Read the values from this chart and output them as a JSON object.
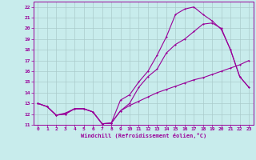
{
  "xlabel": "Windchill (Refroidissement éolien,°C)",
  "bg_color": "#c8ecec",
  "line_color": "#990099",
  "grid_color": "#aacccc",
  "xlim": [
    -0.5,
    23.5
  ],
  "ylim": [
    11,
    22.5
  ],
  "xticks": [
    0,
    1,
    2,
    3,
    4,
    5,
    6,
    7,
    8,
    9,
    10,
    11,
    12,
    13,
    14,
    15,
    16,
    17,
    18,
    19,
    20,
    21,
    22,
    23
  ],
  "yticks": [
    11,
    12,
    13,
    14,
    15,
    16,
    17,
    18,
    19,
    20,
    21,
    22
  ],
  "line1_x": [
    0,
    1,
    2,
    3,
    4,
    5,
    6,
    7,
    8,
    9,
    10,
    11,
    12,
    13,
    14,
    15,
    16,
    17,
    18,
    19,
    20,
    21,
    22,
    23
  ],
  "line1_y": [
    13.0,
    12.7,
    11.9,
    12.0,
    12.5,
    12.5,
    12.2,
    11.1,
    11.15,
    12.3,
    12.8,
    13.2,
    13.6,
    14.0,
    14.3,
    14.6,
    14.9,
    15.2,
    15.4,
    15.7,
    16.0,
    16.3,
    16.6,
    17.0
  ],
  "line2_x": [
    0,
    1,
    2,
    3,
    4,
    5,
    6,
    7,
    8,
    9,
    10,
    11,
    12,
    13,
    14,
    15,
    16,
    17,
    18,
    19,
    20,
    21,
    22,
    23
  ],
  "line2_y": [
    13.0,
    12.7,
    11.9,
    12.0,
    12.5,
    12.5,
    12.2,
    11.1,
    11.15,
    12.3,
    13.0,
    14.5,
    15.5,
    16.2,
    17.7,
    18.5,
    19.0,
    19.7,
    20.4,
    20.5,
    20.0,
    18.0,
    15.5,
    14.5
  ],
  "line3_x": [
    0,
    1,
    2,
    3,
    4,
    5,
    6,
    7,
    8,
    9,
    10,
    11,
    12,
    13,
    14,
    15,
    16,
    17,
    18,
    19,
    20,
    21,
    22,
    23
  ],
  "line3_y": [
    13.0,
    12.7,
    11.9,
    12.1,
    12.5,
    12.5,
    12.2,
    11.1,
    11.15,
    13.3,
    13.8,
    15.0,
    16.0,
    17.5,
    19.2,
    21.3,
    21.8,
    22.0,
    21.3,
    20.7,
    19.9,
    18.0,
    15.5,
    14.5
  ]
}
